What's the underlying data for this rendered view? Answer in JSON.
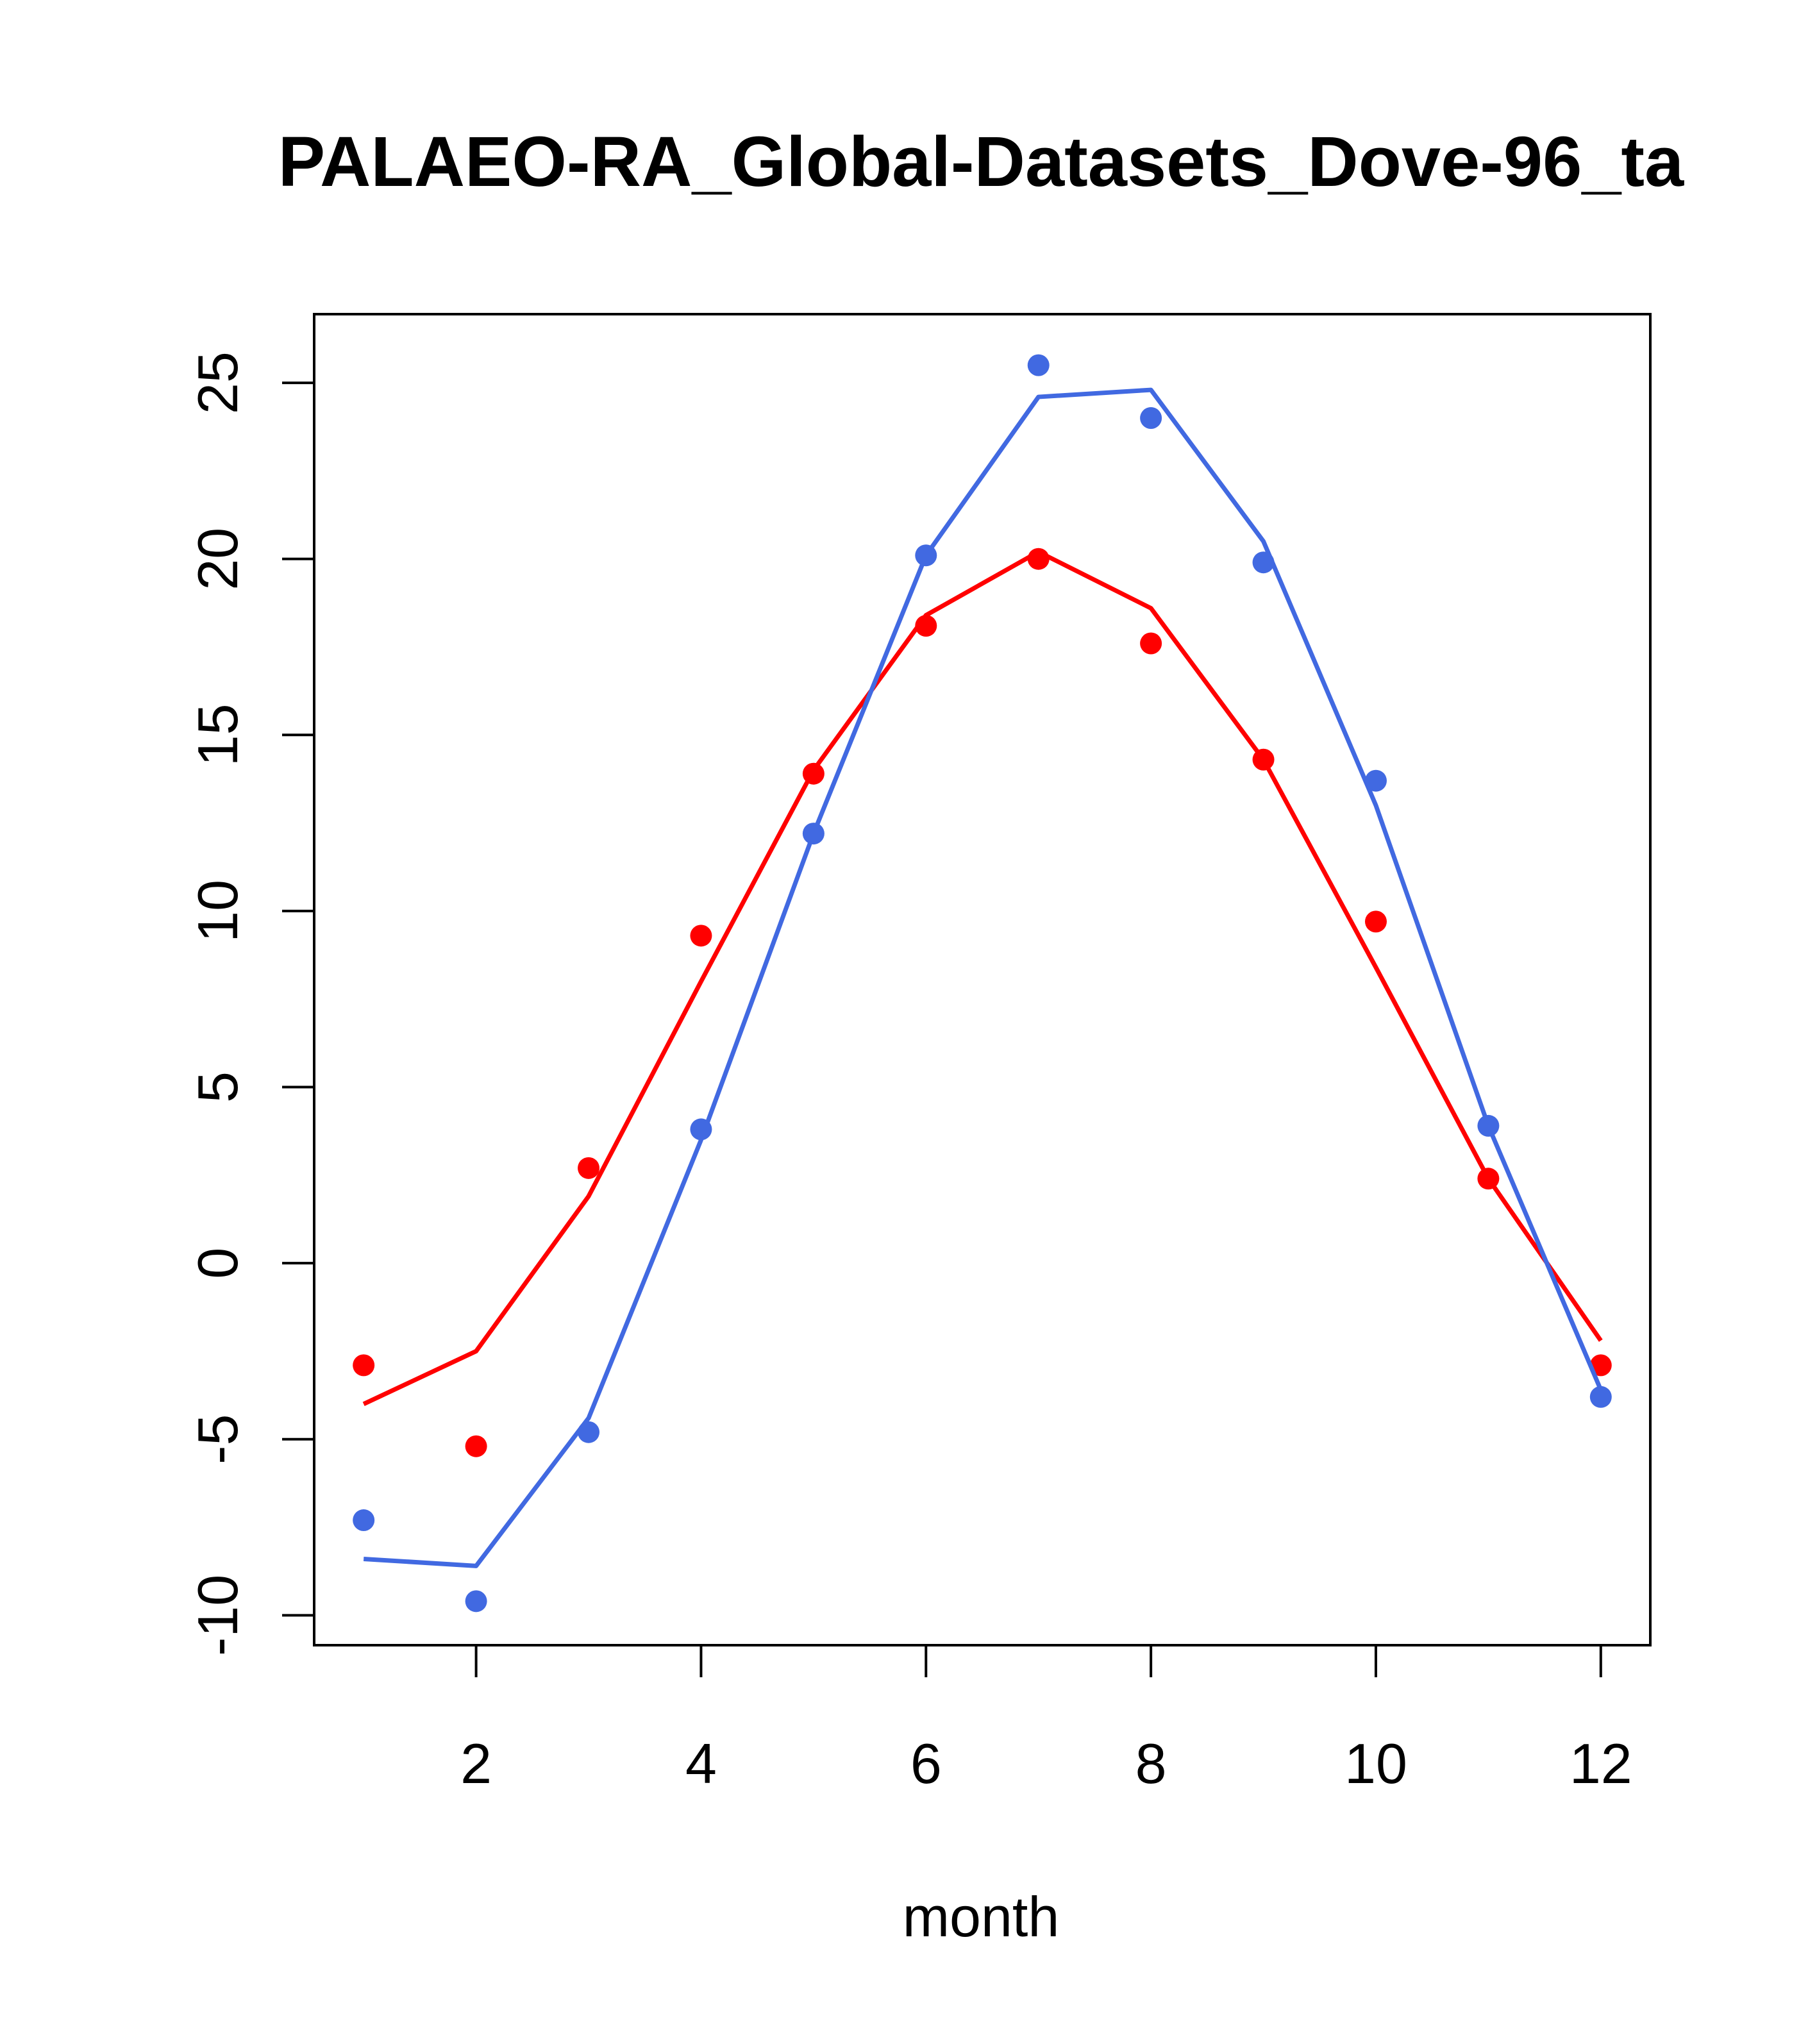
{
  "chart_data": {
    "type": "line",
    "title": "PALAEO-RA_Global-Datasets_Dove-96_ta",
    "xlabel": "month",
    "ylabel": "",
    "xlim": [
      0.56,
      12.44
    ],
    "ylim": [
      -10.85,
      26.95
    ],
    "xticks": [
      2,
      4,
      6,
      8,
      10,
      12
    ],
    "yticks": [
      -10,
      -5,
      0,
      5,
      10,
      15,
      20,
      25
    ],
    "grid": false,
    "colors": {
      "red": "#ff0000",
      "blue": "#4169e1"
    },
    "series": [
      {
        "color": "#ff0000",
        "points_x": [
          1,
          2,
          3,
          4,
          5,
          6,
          7,
          8,
          9,
          10,
          11,
          12
        ],
        "points_y": [
          -2.9,
          -5.2,
          2.7,
          9.3,
          13.9,
          18.1,
          20.0,
          17.6,
          14.3,
          9.7,
          2.4,
          -2.9
        ],
        "line_x": [
          1,
          2,
          3,
          4,
          5,
          6,
          7,
          8,
          9,
          10,
          11,
          12
        ],
        "line_y": [
          -4.0,
          -2.5,
          1.9,
          8.0,
          14.0,
          18.4,
          20.2,
          18.6,
          14.3,
          8.4,
          2.4,
          -2.2
        ]
      },
      {
        "color": "#4169e1",
        "points_x": [
          1,
          2,
          3,
          4,
          5,
          6,
          7,
          8,
          9,
          10,
          11,
          12
        ],
        "points_y": [
          -7.3,
          -9.6,
          -4.8,
          3.8,
          12.2,
          20.1,
          25.5,
          24.0,
          19.9,
          13.7,
          3.9,
          -3.8
        ],
        "line_x": [
          1,
          2,
          3,
          4,
          5,
          6,
          7,
          8,
          9,
          10,
          11,
          12
        ],
        "line_y": [
          -8.4,
          -8.6,
          -4.4,
          3.5,
          12.2,
          20.1,
          24.6,
          24.8,
          20.5,
          13.0,
          3.9,
          -3.6
        ]
      }
    ]
  }
}
